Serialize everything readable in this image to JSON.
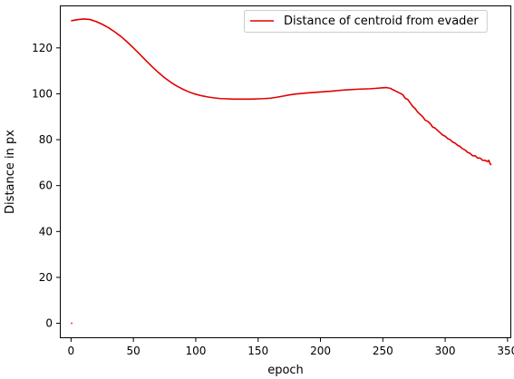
{
  "chart_data": {
    "type": "line",
    "xlabel": "epoch",
    "ylabel": "Distance in px",
    "xlim": [
      -9,
      353
    ],
    "ylim": [
      -6.5,
      138.5
    ],
    "xticks": [
      0,
      50,
      100,
      150,
      200,
      250,
      300,
      350
    ],
    "yticks": [
      0,
      20,
      40,
      60,
      80,
      100,
      120
    ],
    "grid": false,
    "legend_position": "upper-right",
    "series": [
      {
        "name": "Distance of centroid from evader",
        "color": "#e00000",
        "segments": [
          {
            "x": [
              0,
              1
            ],
            "y": [
              0,
              0
            ]
          },
          {
            "x": [
              0,
              5,
              10,
              15,
              20,
              25,
              30,
              35,
              40,
              45,
              50,
              55,
              60,
              65,
              70,
              75,
              80,
              85,
              90,
              95,
              100,
              105,
              110,
              115,
              120,
              125,
              130,
              135,
              140,
              145,
              150,
              155,
              160,
              165,
              170,
              175,
              180,
              190,
              200,
              210,
              220,
              230,
              240,
              245,
              250,
              253,
              256,
              258,
              261,
              264,
              266,
              268,
              270,
              272,
              274,
              276,
              278,
              280,
              282,
              284,
              286,
              288,
              290,
              292,
              294,
              296,
              298,
              300,
              302,
              304,
              306,
              308,
              310,
              312,
              314,
              316,
              318,
              320,
              322,
              324,
              326,
              328,
              330,
              332,
              334,
              335,
              336,
              337
            ],
            "y": [
              131.8,
              132.3,
              132.6,
              132.4,
              131.5,
              130.3,
              128.8,
              127.0,
              125.0,
              122.6,
              120.0,
              117.3,
              114.5,
              111.8,
              109.3,
              107.0,
              105.0,
              103.3,
              101.9,
              100.7,
              99.8,
              99.1,
              98.6,
              98.2,
              97.9,
              97.8,
              97.7,
              97.7,
              97.7,
              97.7,
              97.8,
              97.9,
              98.1,
              98.5,
              99.0,
              99.5,
              99.9,
              100.4,
              100.8,
              101.2,
              101.7,
              102.0,
              102.2,
              102.4,
              102.6,
              102.7,
              102.4,
              101.8,
              101.0,
              100.2,
              99.6,
              98.0,
              97.5,
              96.0,
              94.5,
              93.5,
              92.0,
              91.0,
              90.0,
              88.5,
              88.0,
              87.0,
              85.5,
              85.0,
              84.0,
              83.0,
              82.0,
              81.5,
              80.5,
              80.0,
              79.0,
              78.5,
              77.5,
              77.0,
              76.0,
              75.5,
              74.5,
              74.0,
              73.0,
              73.0,
              72.0,
              72.0,
              71.0,
              71.0,
              70.5,
              71.0,
              69.5,
              69.0
            ]
          }
        ]
      }
    ]
  }
}
